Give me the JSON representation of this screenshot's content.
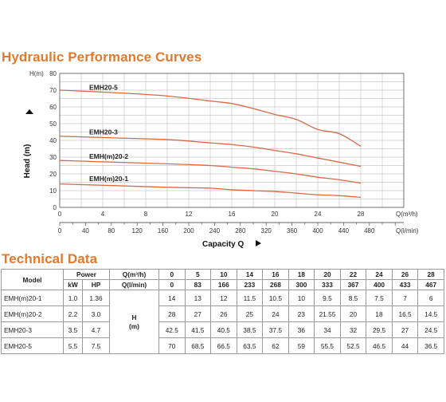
{
  "titles": {
    "hydraulic": "Hydraulic Performance Curves",
    "technical": "Technical Data"
  },
  "chart_data": {
    "type": "line",
    "ylabel": "Head (m)",
    "y_axis_name": "H(m)",
    "xlabel": "Capacity Q",
    "x_axis_name": "Q(m³/h)",
    "x2_axis_name": "Q(l/min)",
    "xlim": [
      0,
      32
    ],
    "ylim": [
      0,
      80
    ],
    "x_ticks": [
      0,
      4,
      8,
      12,
      16,
      20,
      24,
      28
    ],
    "x2_ticks": [
      0,
      40,
      80,
      120,
      160,
      200,
      240,
      280,
      320,
      360,
      400,
      440,
      480
    ],
    "y_ticks": [
      0,
      10,
      20,
      30,
      40,
      50,
      60,
      70,
      80
    ],
    "grid": true,
    "line_color": "#d96a45",
    "series": [
      {
        "name": "EMH20-5",
        "x": [
          0,
          5,
          10,
          14,
          16,
          18,
          20,
          22,
          24,
          26,
          28
        ],
        "values": [
          70,
          68.5,
          66.5,
          63.5,
          62,
          59,
          55.5,
          52.5,
          46.5,
          44,
          36.5
        ]
      },
      {
        "name": "EMH20-3",
        "x": [
          0,
          5,
          10,
          14,
          16,
          18,
          20,
          22,
          24,
          26,
          28
        ],
        "values": [
          42.5,
          41.5,
          40.5,
          38.5,
          37.5,
          36,
          34,
          32,
          29.5,
          27,
          24.5
        ]
      },
      {
        "name": "EMH(m)20-2",
        "x": [
          0,
          5,
          10,
          14,
          16,
          18,
          20,
          22,
          24,
          26,
          28
        ],
        "values": [
          28,
          27,
          26,
          25,
          24,
          23,
          21.55,
          20,
          18,
          16.5,
          14.5
        ]
      },
      {
        "name": "EMH(m)20-1",
        "x": [
          0,
          5,
          10,
          14,
          16,
          18,
          20,
          22,
          24,
          26,
          28
        ],
        "values": [
          14,
          13,
          12,
          11.5,
          10.5,
          10,
          9.5,
          8.5,
          7.5,
          7,
          6
        ]
      }
    ]
  },
  "table": {
    "model_header": "Model",
    "power_header": "Power",
    "kw_header": "kW",
    "hp_header": "HP",
    "q_m3h_header": "Q(m³/h)",
    "q_lmin_header": "Q(l/min)",
    "h_label_1": "H",
    "h_label_2": "(m)",
    "q_m3h": [
      "0",
      "5",
      "10",
      "14",
      "16",
      "18",
      "20",
      "22",
      "24",
      "26",
      "28"
    ],
    "q_lmin": [
      "0",
      "83",
      "166",
      "233",
      "268",
      "300",
      "333",
      "367",
      "400",
      "433",
      "467"
    ],
    "rows": [
      {
        "model": "EMH(m)20-1",
        "kw": "1.0",
        "hp": "1.36",
        "h": [
          "14",
          "13",
          "12",
          "11.5",
          "10.5",
          "10",
          "9.5",
          "8.5",
          "7.5",
          "7",
          "6"
        ]
      },
      {
        "model": "EMH(m)20-2",
        "kw": "2.2",
        "hp": "3.0",
        "h": [
          "28",
          "27",
          "26",
          "25",
          "24",
          "23",
          "21.55",
          "20",
          "18",
          "16.5",
          "14.5"
        ]
      },
      {
        "model": "EMH20-3",
        "kw": "3.5",
        "hp": "4.7",
        "h": [
          "42.5",
          "41.5",
          "40.5",
          "38.5",
          "37.5",
          "36",
          "34",
          "32",
          "29.5",
          "27",
          "24.5"
        ]
      },
      {
        "model": "EMH20-5",
        "kw": "5.5",
        "hp": "7.5",
        "h": [
          "70",
          "68.5",
          "66.5",
          "63.5",
          "62",
          "59",
          "55.5",
          "52.5",
          "46.5",
          "44",
          "36.5"
        ]
      }
    ]
  }
}
